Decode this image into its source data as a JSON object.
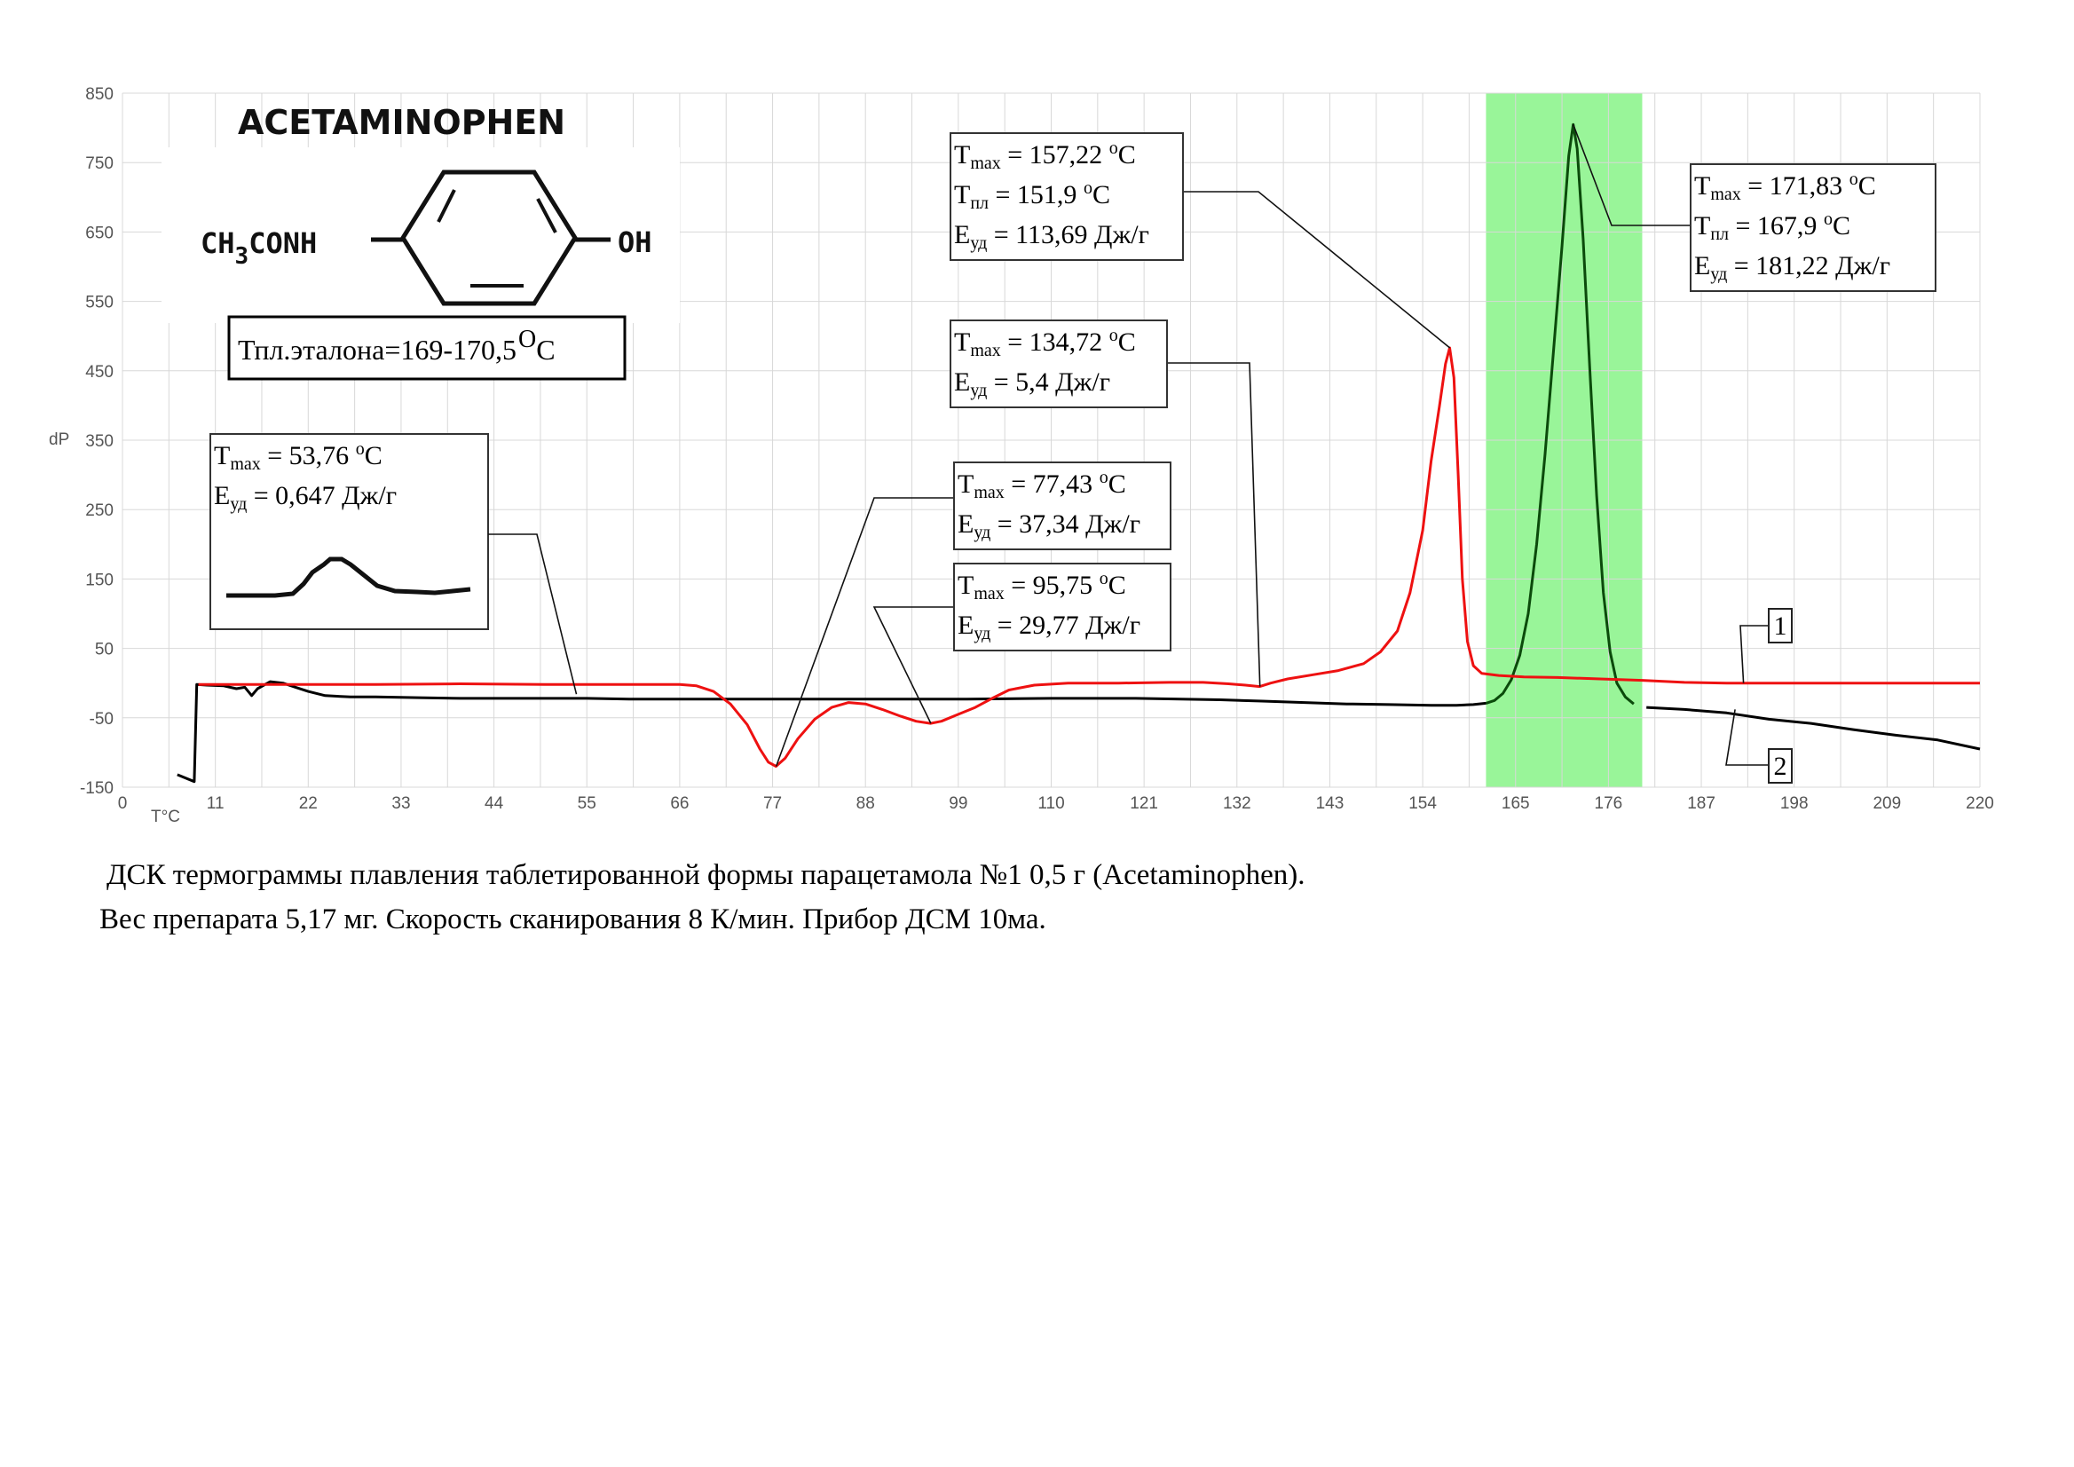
{
  "chart_data": {
    "type": "line",
    "xlabel": "T°C",
    "ylabel": "dP",
    "xlim": [
      0,
      220
    ],
    "ylim": [
      -150,
      850
    ],
    "x_ticks": [
      0,
      11,
      22,
      33,
      44,
      55,
      66,
      77,
      88,
      99,
      110,
      121,
      132,
      143,
      154,
      165,
      176,
      187,
      198,
      209,
      220
    ],
    "y_ticks": [
      -150,
      -50,
      50,
      150,
      250,
      350,
      450,
      550,
      650,
      750,
      850
    ],
    "grid": true,
    "highlight": {
      "x_range": [
        161.5,
        180
      ],
      "color": "#99f599"
    },
    "colors": {
      "series1": "#ee1111",
      "series2": "#000000",
      "series2_in_band": "#0b4a0b"
    },
    "series": [
      {
        "name": "1",
        "color": "#ee1111",
        "points": [
          [
            9,
            -2
          ],
          [
            20,
            -2
          ],
          [
            30,
            -2
          ],
          [
            40,
            -1
          ],
          [
            50,
            -2
          ],
          [
            60,
            -2
          ],
          [
            66,
            -2
          ],
          [
            68,
            -4
          ],
          [
            70,
            -12
          ],
          [
            72,
            -30
          ],
          [
            74,
            -60
          ],
          [
            75.5,
            -95
          ],
          [
            76.5,
            -114
          ],
          [
            77.4,
            -120
          ],
          [
            78.5,
            -108
          ],
          [
            80,
            -80
          ],
          [
            82,
            -52
          ],
          [
            84,
            -35
          ],
          [
            86,
            -28
          ],
          [
            88,
            -30
          ],
          [
            90,
            -38
          ],
          [
            92,
            -47
          ],
          [
            94,
            -55
          ],
          [
            95.7,
            -58
          ],
          [
            97,
            -55
          ],
          [
            99,
            -45
          ],
          [
            101,
            -35
          ],
          [
            103,
            -22
          ],
          [
            105,
            -10
          ],
          [
            108,
            -3
          ],
          [
            112,
            0
          ],
          [
            118,
            0
          ],
          [
            124,
            1
          ],
          [
            128,
            1
          ],
          [
            131,
            -1
          ],
          [
            133,
            -3
          ],
          [
            134.7,
            -5
          ],
          [
            136,
            0
          ],
          [
            138,
            6
          ],
          [
            141,
            12
          ],
          [
            144,
            18
          ],
          [
            147,
            28
          ],
          [
            149,
            45
          ],
          [
            151,
            75
          ],
          [
            152.5,
            130
          ],
          [
            154,
            220
          ],
          [
            155,
            320
          ],
          [
            156,
            400
          ],
          [
            156.7,
            460
          ],
          [
            157.2,
            483
          ],
          [
            157.7,
            440
          ],
          [
            158.2,
            300
          ],
          [
            158.7,
            150
          ],
          [
            159.3,
            60
          ],
          [
            160,
            25
          ],
          [
            161,
            14
          ],
          [
            163,
            11
          ],
          [
            166,
            9
          ],
          [
            170,
            8
          ],
          [
            175,
            6
          ],
          [
            180,
            4
          ],
          [
            185,
            1
          ],
          [
            190,
            0
          ],
          [
            200,
            0
          ],
          [
            210,
            0
          ],
          [
            220,
            0
          ]
        ]
      },
      {
        "name": "2",
        "color": "#000000",
        "points": [
          [
            6.5,
            -132
          ],
          [
            8.5,
            -142
          ],
          [
            8.8,
            -2
          ],
          [
            10,
            -3
          ],
          [
            12,
            -4
          ],
          [
            13.5,
            -8
          ],
          [
            14.5,
            -6
          ],
          [
            15.3,
            -18
          ],
          [
            16,
            -8
          ],
          [
            17.5,
            2
          ],
          [
            19,
            0
          ],
          [
            20.5,
            -6
          ],
          [
            22,
            -12
          ],
          [
            24,
            -18
          ],
          [
            27,
            -20
          ],
          [
            30,
            -20
          ],
          [
            35,
            -21
          ],
          [
            40,
            -22
          ],
          [
            45,
            -22
          ],
          [
            50,
            -22
          ],
          [
            55,
            -22
          ],
          [
            60,
            -23
          ],
          [
            65,
            -23
          ],
          [
            70,
            -23
          ],
          [
            80,
            -23
          ],
          [
            90,
            -23
          ],
          [
            100,
            -23
          ],
          [
            110,
            -22
          ],
          [
            120,
            -22
          ],
          [
            130,
            -24
          ],
          [
            135,
            -26
          ],
          [
            140,
            -28
          ],
          [
            145,
            -30
          ],
          [
            150,
            -31
          ],
          [
            155,
            -32
          ],
          [
            158,
            -32
          ],
          [
            160,
            -31
          ],
          [
            161.5,
            -29
          ],
          [
            162.5,
            -25
          ],
          [
            163.5,
            -15
          ],
          [
            164.5,
            5
          ],
          [
            165.5,
            40
          ],
          [
            166.5,
            100
          ],
          [
            167.5,
            200
          ],
          [
            168.5,
            330
          ],
          [
            169.5,
            480
          ],
          [
            170.5,
            630
          ],
          [
            171.3,
            760
          ],
          [
            171.83,
            805
          ],
          [
            172.3,
            770
          ],
          [
            173,
            640
          ],
          [
            173.8,
            450
          ],
          [
            174.6,
            270
          ],
          [
            175.4,
            130
          ],
          [
            176.2,
            45
          ],
          [
            177,
            0
          ],
          [
            178,
            -20
          ],
          [
            179,
            -30
          ],
          [
            180.5,
            -35
          ],
          [
            185,
            -38
          ],
          [
            190,
            -43
          ],
          [
            195,
            -52
          ],
          [
            200,
            -58
          ],
          [
            205,
            -67
          ],
          [
            210,
            -75
          ],
          [
            215,
            -82
          ],
          [
            220,
            -95
          ]
        ]
      }
    ]
  },
  "labels": {
    "compound": "ACETAMINOPHEN",
    "formula_left": "CH",
    "formula_left_sub": "3",
    "formula_left_rest": "CONH",
    "formula_right": "OH",
    "reference": "Тпл.эталона=169-170,5",
    "reference_sup": "O",
    "reference_unit": "С",
    "series_label_1": "1",
    "series_label_2": "2"
  },
  "annotations": {
    "a1": {
      "l1": [
        "T",
        "max",
        " = 53,76 ",
        "o",
        "C"
      ],
      "l2": [
        "E",
        "уд",
        " = 0,647 Дж/г"
      ]
    },
    "a2": {
      "l1": [
        "T",
        "max",
        " = 77,43 ",
        "o",
        "C"
      ],
      "l2": [
        "E",
        "уд",
        " = 37,34 Дж/г"
      ]
    },
    "a3": {
      "l1": [
        "T",
        "max",
        " = 95,75 ",
        "o",
        "C"
      ],
      "l2": [
        "E",
        "уд",
        " = 29,77 Дж/г"
      ]
    },
    "a4": {
      "l1": [
        "T",
        "max",
        " = 134,72 ",
        "o",
        "C"
      ],
      "l2": [
        "E",
        "уд",
        " = 5,4 Дж/г"
      ]
    },
    "a5": {
      "l1": [
        "T",
        "max",
        " = 157,22 ",
        "o",
        "C"
      ],
      "l2": [
        "T",
        "пл",
        " = 151,9 ",
        "o",
        "C"
      ],
      "l3": [
        "E",
        "уд",
        " = 113,69 Дж/г"
      ]
    },
    "a6": {
      "l1": [
        "T",
        "max",
        " = 171,83 ",
        "o",
        "C"
      ],
      "l2": [
        "T",
        "пл",
        " = 167,9 ",
        "o",
        "C"
      ],
      "l3": [
        "E",
        "уд",
        " = 181,22 Дж/г"
      ]
    }
  },
  "caption": {
    "line1": "ДСК термограммы плавления таблетированной формы парацетамола №1 0,5 г  (Acetaminophen).",
    "line2": "Вес препарата 5,17 мг. Скорость сканирования 8 К/мин. Прибор ДСМ 10ма."
  }
}
